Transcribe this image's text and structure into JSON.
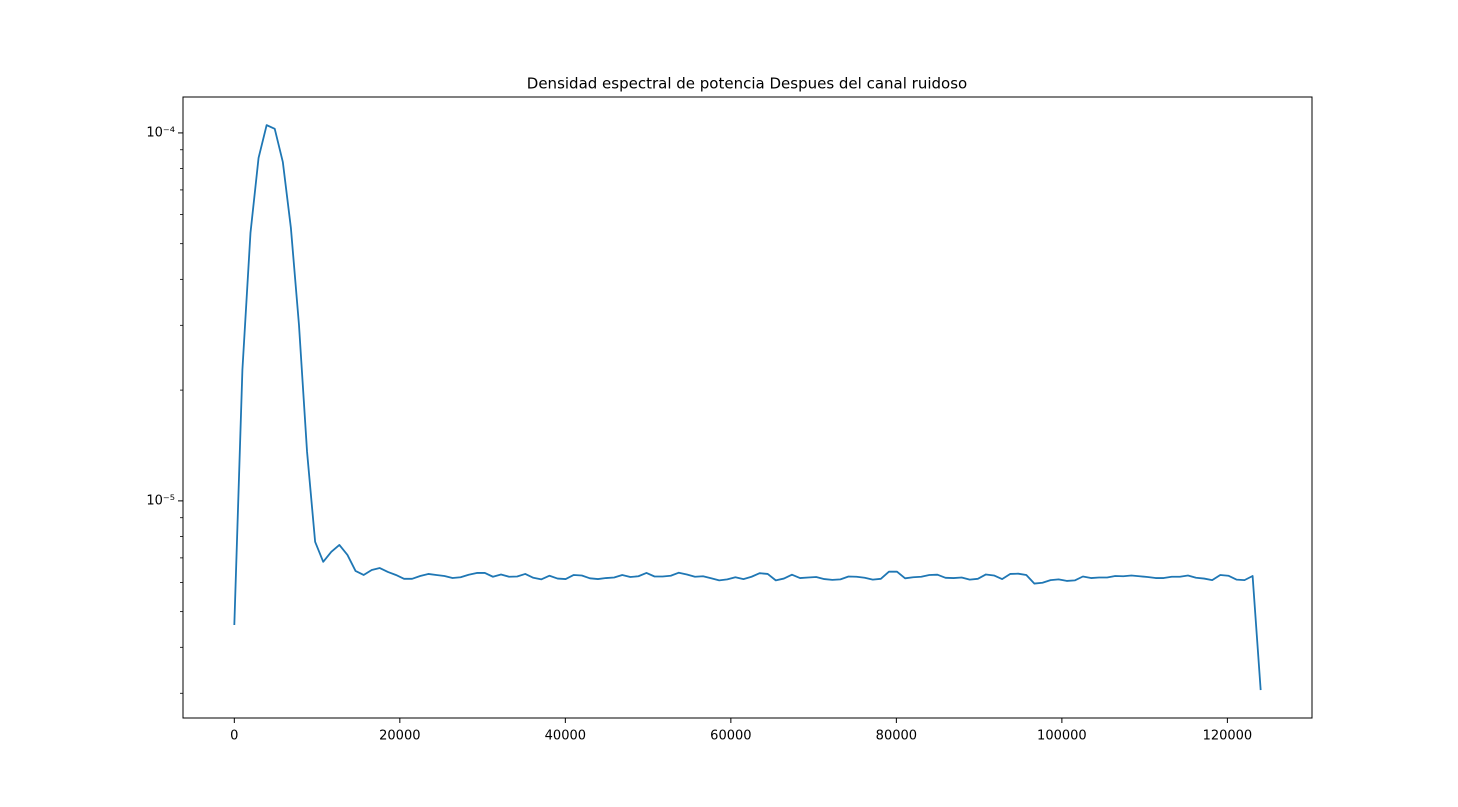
{
  "chart_data": {
    "type": "line",
    "title": "Densidad espectral de potencia Despues del canal ruidoso",
    "yscale": "log",
    "color": "#1f77b4",
    "xlim": [
      -6201.17,
      130224.6
    ],
    "ylim": [
      2.57e-06,
      0.0001252
    ],
    "xticks": [
      0,
      20000,
      40000,
      60000,
      80000,
      100000,
      120000
    ],
    "yticks": [
      {
        "value": 1e-05,
        "label": "10⁻⁵"
      },
      {
        "value": 0.0001,
        "label": "10⁻⁴"
      }
    ],
    "yminorticks": [
      3e-06,
      4e-06,
      5e-06,
      6e-06,
      7e-06,
      8e-06,
      9e-06,
      2e-05,
      3e-05,
      4e-05,
      5e-05,
      6e-05,
      7e-05,
      8e-05,
      9e-05
    ],
    "x": [
      0,
      976.5625,
      1953.125,
      2929.6875,
      3906.25,
      4882.8125,
      5859.375,
      6835.9375,
      7812.5,
      8789.0625,
      9765.625,
      10742.1875,
      11718.75,
      12695.3125,
      13671.875,
      14648.4375,
      15625,
      16601.5625,
      17578.125,
      18554.6875,
      19531.25,
      20507.8125,
      21484.375,
      22460.9375,
      23437.5,
      24414.0625,
      25390.625,
      26367.1875,
      27343.75,
      28320.3125,
      29296.875,
      30273.4375,
      31250,
      32226.5625,
      33203.125,
      34179.6875,
      35156.25,
      36132.8125,
      37109.375,
      38085.9375,
      39062.5,
      40039.0625,
      41015.625,
      41992.1875,
      42968.75,
      43945.3125,
      44921.875,
      45898.4375,
      46875,
      47851.5625,
      48828.125,
      49804.6875,
      50781.25,
      51757.8125,
      52734.375,
      53710.9375,
      54687.5,
      55664.0625,
      56640.625,
      57617.1875,
      58593.75,
      59570.3125,
      60546.875,
      61523.4375,
      62500,
      63476.5625,
      64453.125,
      65429.6875,
      66406.25,
      67382.8125,
      68359.375,
      69335.9375,
      70312.5,
      71289.0625,
      72265.625,
      73242.1875,
      74218.75,
      75195.3125,
      76171.875,
      77148.4375,
      78125,
      79101.5625,
      80078.125,
      81054.6875,
      82031.25,
      83007.8125,
      83984.375,
      84960.9375,
      85937.5,
      86914.0625,
      87890.625,
      88867.1875,
      89843.75,
      90820.3125,
      91796.875,
      92773.4375,
      93750,
      94726.5625,
      95703.125,
      96679.6875,
      97656.25,
      98632.8125,
      99609.375,
      100585.9375,
      101562.5,
      102539.0625,
      103515.625,
      104492.1875,
      105468.75,
      106445.3125,
      107421.875,
      108398.4375,
      109375,
      110351.5625,
      111328.125,
      112304.6875,
      113281.25,
      114257.8125,
      115234.375,
      116210.9375,
      117187.5,
      118164.0625,
      119140.625,
      120117.1875,
      121093.75,
      122070.3125,
      123046.875,
      124023.4375
    ],
    "values": [
      4.6e-06,
      2.27e-05,
      5.35e-05,
      8.55e-05,
      0.000105,
      0.0001026,
      8.34e-05,
      5.52e-05,
      3.01e-05,
      1.36e-05,
      7.74e-06,
      6.83e-06,
      7.27e-06,
      7.59e-06,
      7.13e-06,
      6.45e-06,
      6.29e-06,
      6.49e-06,
      6.57e-06,
      6.41e-06,
      6.29e-06,
      6.14e-06,
      6.14e-06,
      6.25e-06,
      6.33e-06,
      6.29e-06,
      6.25e-06,
      6.17e-06,
      6.2e-06,
      6.3e-06,
      6.37e-06,
      6.37e-06,
      6.22e-06,
      6.31e-06,
      6.22e-06,
      6.23e-06,
      6.33e-06,
      6.18e-06,
      6.12e-06,
      6.26e-06,
      6.15e-06,
      6.13e-06,
      6.29e-06,
      6.27e-06,
      6.16e-06,
      6.13e-06,
      6.17e-06,
      6.19e-06,
      6.29e-06,
      6.21e-06,
      6.24e-06,
      6.37e-06,
      6.23e-06,
      6.23e-06,
      6.26e-06,
      6.38e-06,
      6.31e-06,
      6.22e-06,
      6.24e-06,
      6.16e-06,
      6.08e-06,
      6.12e-06,
      6.2e-06,
      6.13e-06,
      6.22e-06,
      6.36e-06,
      6.33e-06,
      6.08e-06,
      6.15e-06,
      6.3e-06,
      6.17e-06,
      6.19e-06,
      6.21e-06,
      6.13e-06,
      6.1e-06,
      6.12e-06,
      6.23e-06,
      6.22e-06,
      6.18e-06,
      6.11e-06,
      6.14e-06,
      6.42e-06,
      6.42e-06,
      6.16e-06,
      6.2e-06,
      6.22e-06,
      6.29e-06,
      6.3e-06,
      6.18e-06,
      6.17e-06,
      6.19e-06,
      6.11e-06,
      6.14e-06,
      6.31e-06,
      6.27e-06,
      6.13e-06,
      6.33e-06,
      6.34e-06,
      6.29e-06,
      5.96e-06,
      5.99e-06,
      6.09e-06,
      6.12e-06,
      6.06e-06,
      6.08e-06,
      6.23e-06,
      6.17e-06,
      6.19e-06,
      6.19e-06,
      6.25e-06,
      6.24e-06,
      6.27e-06,
      6.24e-06,
      6.21e-06,
      6.17e-06,
      6.17e-06,
      6.22e-06,
      6.22e-06,
      6.27e-06,
      6.18e-06,
      6.15e-06,
      6.09e-06,
      6.29e-06,
      6.26e-06,
      6.11e-06,
      6.09e-06,
      6.25e-06,
      3.06e-06
    ]
  }
}
